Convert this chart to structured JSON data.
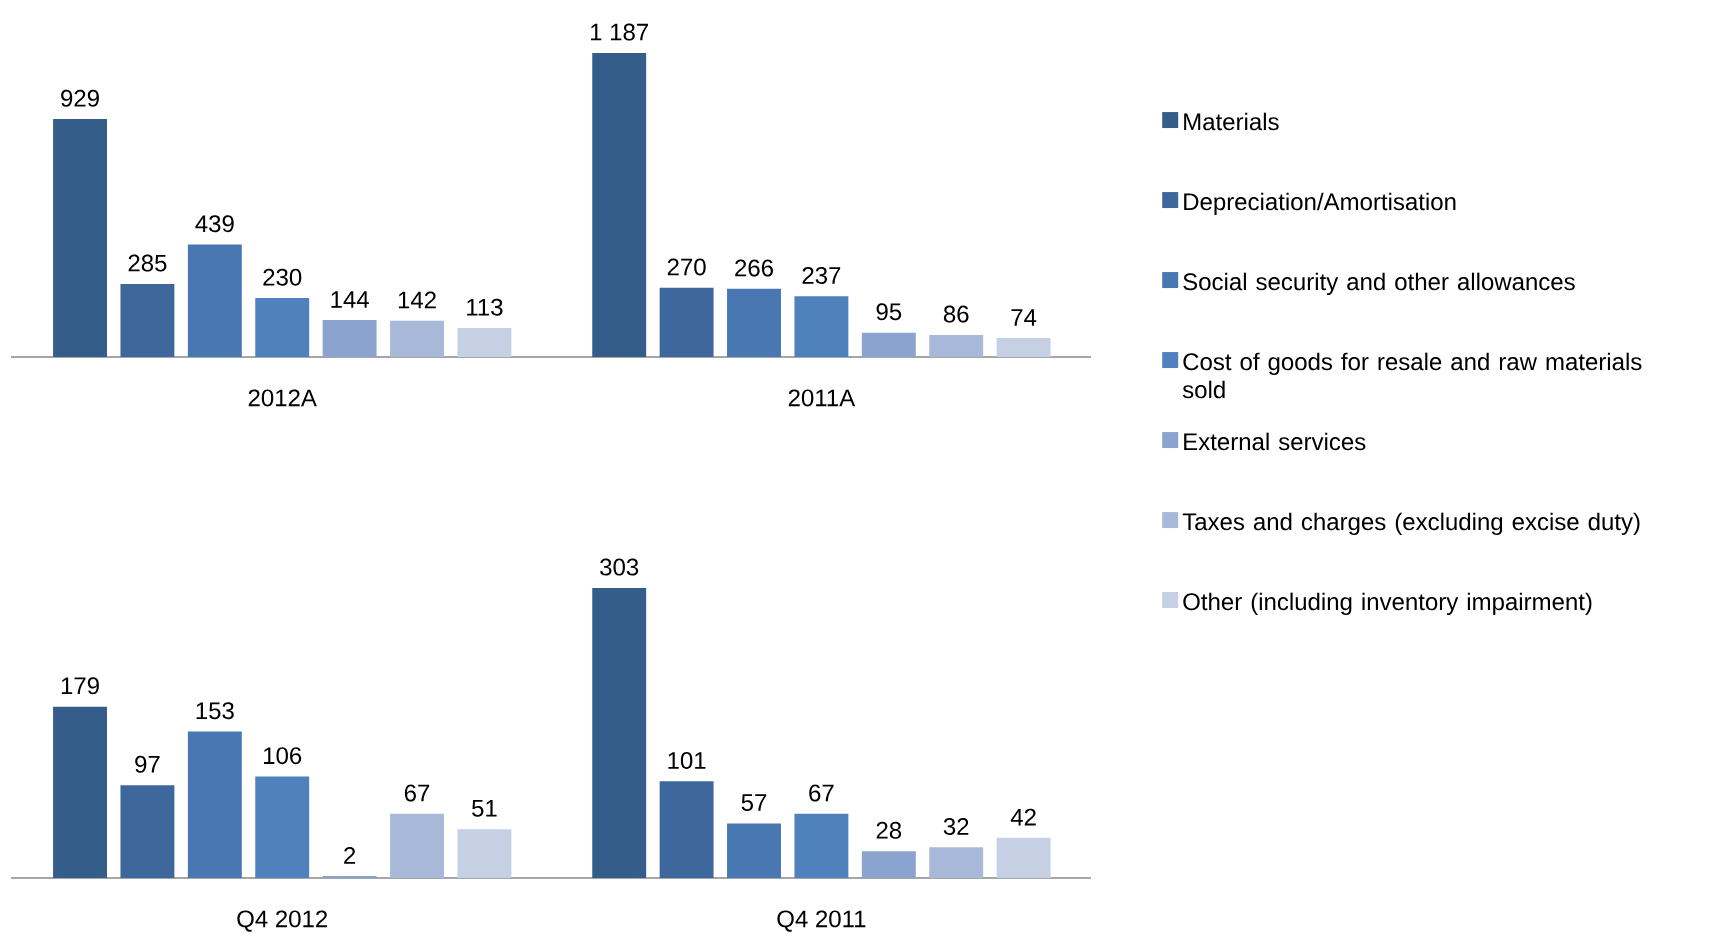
{
  "chart_data": [
    {
      "type": "bar",
      "categories": [
        "2012A",
        "2011A"
      ],
      "tick_labels": "x",
      "legend": "right",
      "series": [
        {
          "name": "Materials",
          "color": "#355d8a",
          "values": [
            929,
            1187
          ],
          "value_labels": [
            "929",
            "1 187"
          ]
        },
        {
          "name": "Depreciation/Amortisation",
          "color": "#3e689c",
          "values": [
            285,
            270
          ],
          "value_labels": [
            "285",
            "270"
          ]
        },
        {
          "name": "Social security and other allowances",
          "color": "#4877b1",
          "values": [
            439,
            266
          ],
          "value_labels": [
            "439",
            "266"
          ]
        },
        {
          "name": "Cost of goods for resale and raw materials sold",
          "color": "#4f81bd",
          "values": [
            230,
            237
          ],
          "value_labels": [
            "230",
            "237"
          ]
        },
        {
          "name": "External services",
          "color": "#8aa4cf",
          "values": [
            144,
            95
          ],
          "value_labels": [
            "144",
            "95"
          ]
        },
        {
          "name": "Taxes and charges (excluding excise duty)",
          "color": "#a8b8d8",
          "values": [
            142,
            86
          ],
          "value_labels": [
            "142",
            "86"
          ]
        },
        {
          "name": "Other (including inventory impairment)",
          "color": "#c5d0e4",
          "values": [
            113,
            74
          ],
          "value_labels": [
            "113",
            "74"
          ]
        }
      ]
    },
    {
      "type": "bar",
      "categories": [
        "Q4 2012",
        "Q4 2011"
      ],
      "tick_labels": "x",
      "series": [
        {
          "color": "#355d8a",
          "values": [
            179,
            303
          ],
          "value_labels": [
            "179",
            "303"
          ]
        },
        {
          "color": "#3e689c",
          "values": [
            97,
            101
          ],
          "value_labels": [
            "97",
            "101"
          ]
        },
        {
          "color": "#4877b1",
          "values": [
            153,
            57
          ],
          "value_labels": [
            "153",
            "57"
          ]
        },
        {
          "color": "#4f81bd",
          "values": [
            106,
            67
          ],
          "value_labels": [
            "106",
            "67"
          ]
        },
        {
          "color": "#8aa4cf",
          "values": [
            2,
            28
          ],
          "value_labels": [
            "2",
            "28"
          ]
        },
        {
          "color": "#a8b8d8",
          "values": [
            67,
            32
          ],
          "value_labels": [
            "67",
            "32"
          ]
        },
        {
          "color": "#c5d0e4",
          "values": [
            51,
            42
          ],
          "value_labels": [
            "51",
            "42"
          ]
        }
      ]
    }
  ]
}
